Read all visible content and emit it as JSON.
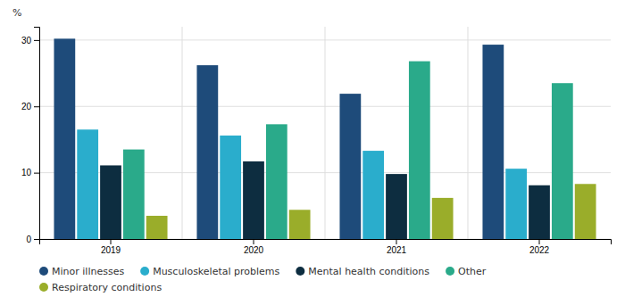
{
  "chart_data": {
    "type": "bar",
    "ylabel": "%",
    "categories": [
      "2019",
      "2020",
      "2021",
      "2022"
    ],
    "series": [
      {
        "name": "Minor illnesses",
        "color": "#1e4b7a",
        "values": [
          30.2,
          26.2,
          21.9,
          29.3
        ]
      },
      {
        "name": "Musculoskeletal problems",
        "color": "#2aadcc",
        "values": [
          16.5,
          15.6,
          13.3,
          10.6
        ]
      },
      {
        "name": "Mental health conditions",
        "color": "#0d2d40",
        "values": [
          11.1,
          11.7,
          9.8,
          8.1
        ]
      },
      {
        "name": "Other",
        "color": "#2aaa8a",
        "values": [
          13.5,
          17.3,
          26.8,
          23.5
        ]
      },
      {
        "name": "Respiratory conditions",
        "color": "#9aad2a",
        "values": [
          3.5,
          4.4,
          6.2,
          8.3
        ]
      }
    ],
    "ylim": [
      0,
      32
    ],
    "yticks": [
      0,
      10,
      20,
      30
    ],
    "grid": true,
    "legend": "bottom"
  }
}
